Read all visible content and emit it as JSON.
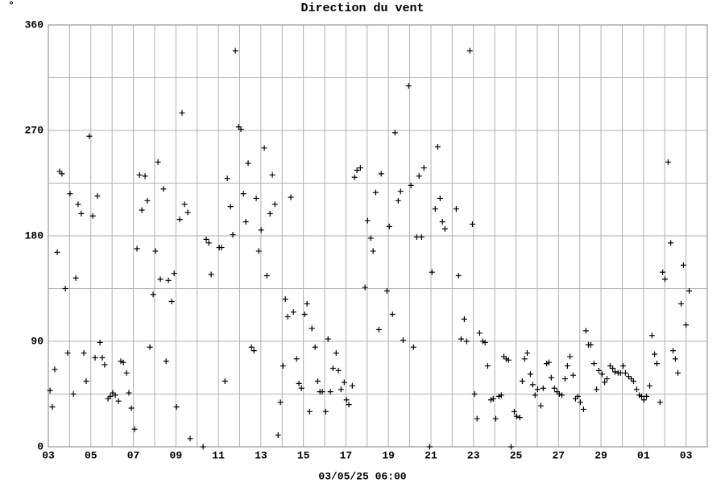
{
  "chart_data": {
    "type": "scatter",
    "title": "Direction du vent",
    "ylabel": "°",
    "xlabel": "03/05/25 06:00",
    "color": "#000000",
    "marker": "+",
    "grid": true,
    "xlim": [
      0,
      31
    ],
    "ylim": [
      0,
      360
    ],
    "xticks": [
      {
        "value": 0,
        "label": "03"
      },
      {
        "value": 2,
        "label": "05"
      },
      {
        "value": 4,
        "label": "07"
      },
      {
        "value": 6,
        "label": "09"
      },
      {
        "value": 8,
        "label": "11"
      },
      {
        "value": 10,
        "label": "13"
      },
      {
        "value": 12,
        "label": "15"
      },
      {
        "value": 14,
        "label": "17"
      },
      {
        "value": 16,
        "label": "19"
      },
      {
        "value": 18,
        "label": "21"
      },
      {
        "value": 20,
        "label": "23"
      },
      {
        "value": 22,
        "label": "25"
      },
      {
        "value": 24,
        "label": "27"
      },
      {
        "value": 26,
        "label": "29"
      },
      {
        "value": 28,
        "label": "01"
      },
      {
        "value": 30,
        "label": "03"
      }
    ],
    "minor_xticks": [
      1,
      3,
      5,
      7,
      9,
      11,
      13,
      15,
      17,
      19,
      21,
      23,
      25,
      27,
      29
    ],
    "yticks": [
      0,
      90,
      180,
      270,
      360
    ],
    "minor_yticks": [
      45,
      135,
      225,
      315
    ],
    "x": [
      0.08,
      0.19,
      0.3,
      0.42,
      0.53,
      0.64,
      0.8,
      0.91,
      1.02,
      1.18,
      1.29,
      1.4,
      1.55,
      1.67,
      1.78,
      1.93,
      2.09,
      2.2,
      2.31,
      2.43,
      2.54,
      2.65,
      2.81,
      2.92,
      3.03,
      3.15,
      3.3,
      3.41,
      3.53,
      3.68,
      3.79,
      3.91,
      4.06,
      4.17,
      4.29,
      4.4,
      4.55,
      4.66,
      4.78,
      4.93,
      5.04,
      5.16,
      5.27,
      5.42,
      5.54,
      5.65,
      5.8,
      5.92,
      6.03,
      6.18,
      6.29,
      6.41,
      6.56,
      6.67,
      7.28,
      7.43,
      7.55,
      7.66,
      8.04,
      8.15,
      8.31,
      8.42,
      8.57,
      8.68,
      8.8,
      8.95,
      9.06,
      9.18,
      9.29,
      9.4,
      9.56,
      9.67,
      9.78,
      9.9,
      10.01,
      10.16,
      10.28,
      10.43,
      10.54,
      10.66,
      10.81,
      10.92,
      11.04,
      11.15,
      11.26,
      11.41,
      11.53,
      11.68,
      11.79,
      11.91,
      12.06,
      12.17,
      12.29,
      12.4,
      12.55,
      12.67,
      12.78,
      12.89,
      13.05,
      13.16,
      13.27,
      13.39,
      13.54,
      13.65,
      13.77,
      13.92,
      14.03,
      14.14,
      14.3,
      14.41,
      14.52,
      14.68,
      14.9,
      15.02,
      15.17,
      15.28,
      15.4,
      15.55,
      15.66,
      15.93,
      16.04,
      16.19,
      16.31,
      16.46,
      16.57,
      16.69,
      16.95,
      17.06,
      17.18,
      17.33,
      17.44,
      17.56,
      17.67,
      17.94,
      18.05,
      18.2,
      18.32,
      18.43,
      18.54,
      18.66,
      19.19,
      19.3,
      19.42,
      19.57,
      19.68,
      19.83,
      19.95,
      20.06,
      20.17,
      20.29,
      20.44,
      20.55,
      20.67,
      20.82,
      20.93,
      21.05,
      21.2,
      21.31,
      21.43,
      21.54,
      21.65,
      21.77,
      21.92,
      22.03,
      22.18,
      22.3,
      22.41,
      22.53,
      22.68,
      22.79,
      22.9,
      23.02,
      23.17,
      23.28,
      23.44,
      23.55,
      23.66,
      23.81,
      23.93,
      24.04,
      24.16,
      24.31,
      24.42,
      24.54,
      24.69,
      24.8,
      24.91,
      25.03,
      25.18,
      25.29,
      25.41,
      25.52,
      25.67,
      25.79,
      25.9,
      26.05,
      26.17,
      26.28,
      26.43,
      26.55,
      26.66,
      26.81,
      26.92,
      27.04,
      27.15,
      27.3,
      27.42,
      27.53,
      27.68,
      27.8,
      27.91,
      28.02,
      28.14,
      28.29,
      28.4,
      28.52,
      28.63,
      28.78,
      28.9,
      29.01,
      29.16,
      29.28,
      29.39,
      29.5,
      29.62,
      29.77,
      29.88,
      30.0,
      30.15
    ],
    "values": [
      48,
      34,
      66,
      166,
      235,
      233,
      135,
      80,
      216,
      45,
      144,
      207,
      199,
      80,
      56,
      265,
      197,
      76,
      214,
      89,
      76,
      70,
      41,
      43,
      46,
      44,
      39,
      73,
      72,
      63,
      46,
      33,
      15,
      169,
      232,
      202,
      231,
      210,
      85,
      130,
      167,
      243,
      143,
      220,
      73,
      142,
      124,
      148,
      34,
      194,
      285,
      207,
      200,
      7,
      0,
      177,
      174,
      147,
      170,
      170,
      56,
      229,
      205,
      181,
      338,
      273,
      271,
      216,
      192,
      242,
      85,
      82,
      212,
      167,
      185,
      255,
      146,
      199,
      232,
      207,
      10,
      38,
      69,
      126,
      111,
      213,
      115,
      75,
      54,
      50,
      113,
      122,
      30,
      101,
      85,
      56,
      47,
      47,
      30,
      92,
      47,
      67,
      80,
      65,
      49,
      55,
      40,
      36,
      52,
      230,
      236,
      238,
      136,
      193,
      178,
      167,
      217,
      100,
      233,
      133,
      188,
      113,
      268,
      210,
      218,
      91,
      308,
      223,
      85,
      179,
      231,
      179,
      238,
      0,
      149,
      203,
      256,
      212,
      192,
      186,
      203,
      146,
      92,
      109,
      90,
      338,
      190,
      45,
      24,
      97,
      90,
      89,
      69,
      40,
      41,
      24,
      43,
      44,
      77,
      75,
      74,
      0,
      30,
      26,
      25,
      56,
      75,
      80,
      62,
      53,
      44,
      49,
      35,
      50,
      71,
      72,
      59,
      50,
      47,
      45,
      44,
      58,
      69,
      77,
      61,
      41,
      43,
      38,
      32,
      99,
      87,
      87,
      71,
      49,
      65,
      62,
      55,
      58,
      69,
      67,
      64,
      63,
      63,
      69,
      63,
      60,
      58,
      56,
      49,
      44,
      43,
      40,
      43,
      52,
      95,
      79,
      71,
      38,
      149,
      143,
      243,
      174,
      82,
      75,
      63,
      122,
      155,
      104,
      133
    ]
  }
}
